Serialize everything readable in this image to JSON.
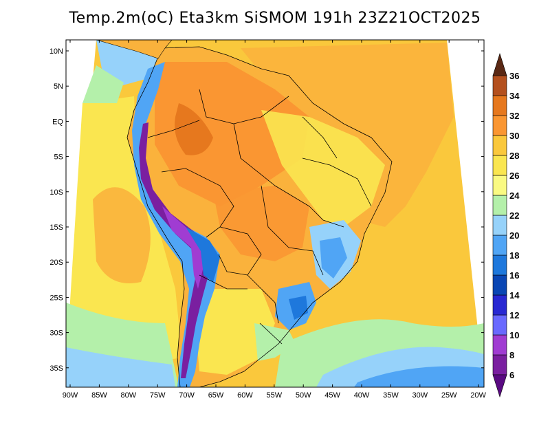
{
  "title": "Temp.2m(oC) Eta3km SiSMOM 191h 23Z21OCT2025",
  "map": {
    "variable": "2 m temperature",
    "units": "oC",
    "region": "South America",
    "lon_range": [
      -90,
      -20
    ],
    "lat_range": [
      -37,
      11
    ],
    "lon_ticks": [
      "90W",
      "85W",
      "80W",
      "75W",
      "70W",
      "65W",
      "60W",
      "55W",
      "50W",
      "45W",
      "40W",
      "35W",
      "30W",
      "25W",
      "20W"
    ],
    "lat_ticks": [
      "10N",
      "5N",
      "EQ",
      "5S",
      "10S",
      "15S",
      "20S",
      "25S",
      "30S",
      "35S"
    ]
  },
  "colorbar": {
    "labels": [
      "6",
      "8",
      "10",
      "12",
      "14",
      "16",
      "18",
      "20",
      "22",
      "24",
      "26",
      "28",
      "30",
      "32",
      "34",
      "36"
    ],
    "colors": [
      "#7a1fa0",
      "#a03cd2",
      "#6969ff",
      "#2828d2",
      "#0a46b4",
      "#1e78dc",
      "#50a5f5",
      "#96d2fa",
      "#b4f0aa",
      "#fafa82",
      "#fae650",
      "#fac83c",
      "#fa9632",
      "#e6781e",
      "#b4501e",
      "#783214"
    ],
    "lower_arrow_color": "#5a0a82",
    "upper_arrow_color": "#5a2814"
  }
}
